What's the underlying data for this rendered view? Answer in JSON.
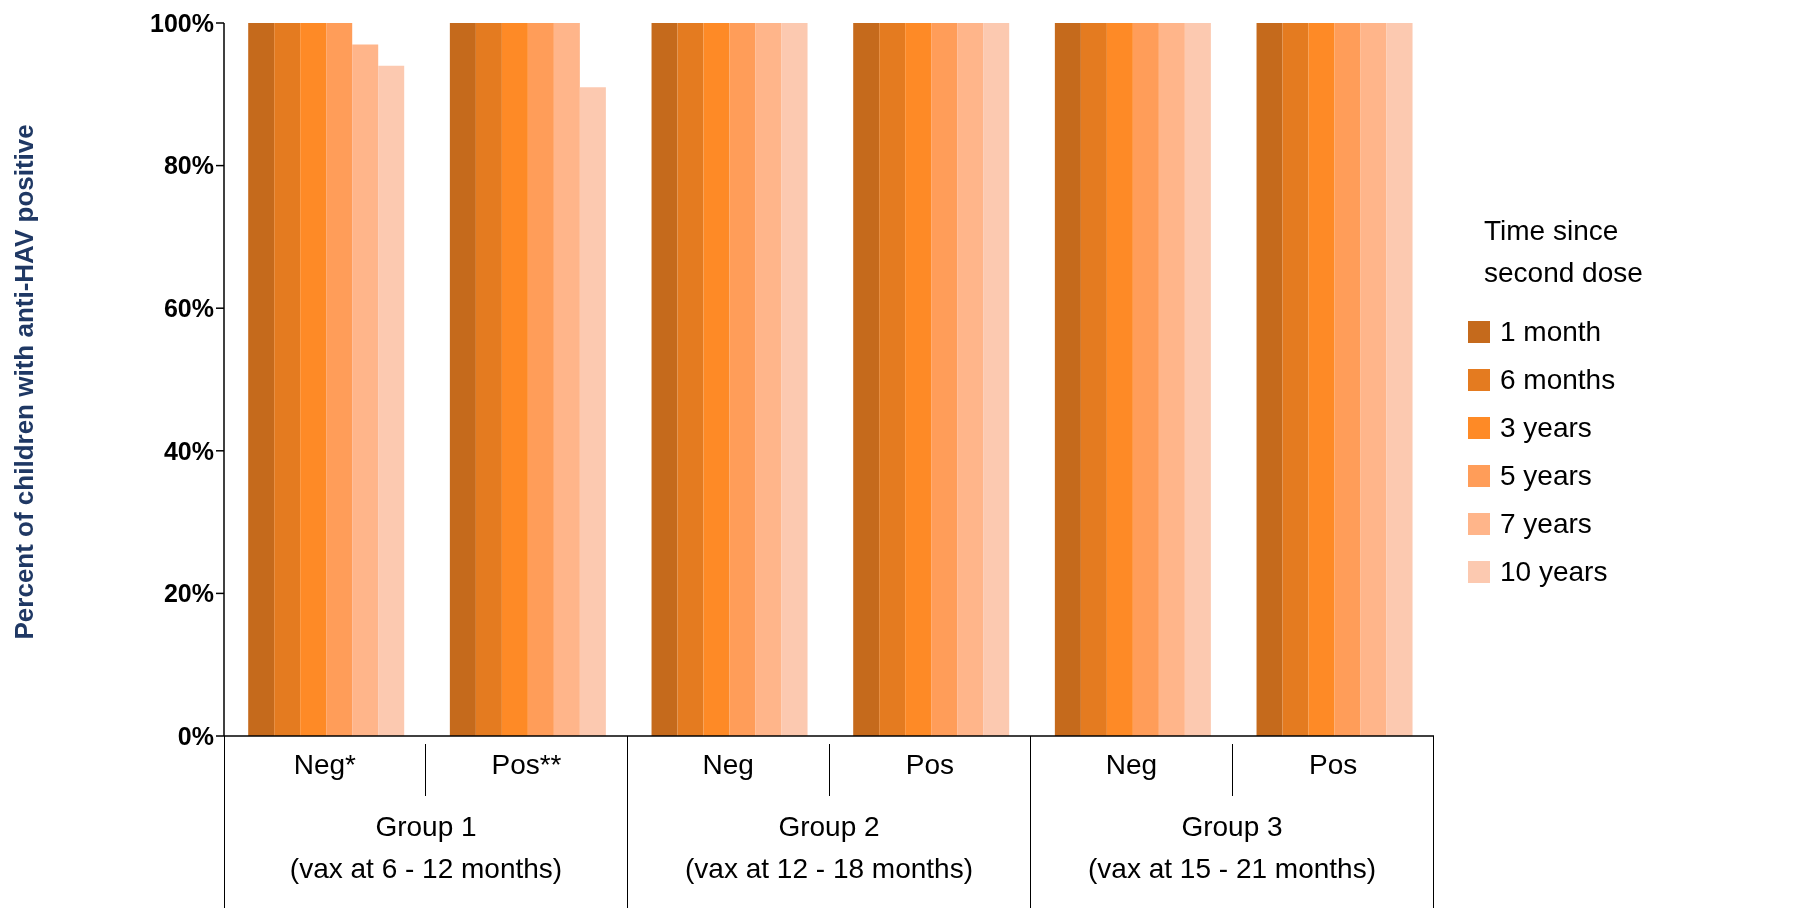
{
  "chart_data": {
    "type": "bar",
    "ylabel": "Percent  of children with anti-HAV positive",
    "legend_title": "Time since second dose",
    "legend": "right",
    "categories": [
      "Neg*",
      "Pos**",
      "Neg",
      "Pos",
      "Neg",
      "Pos"
    ],
    "series": [
      {
        "name": "1 month",
        "color": "#c56a1c",
        "values": [
          100,
          100,
          100,
          100,
          100,
          100
        ]
      },
      {
        "name": "6 months",
        "color": "#e47b20",
        "values": [
          100,
          100,
          100,
          100,
          100,
          100
        ]
      },
      {
        "name": "3 years",
        "color": "#fe8a26",
        "values": [
          100,
          100,
          100,
          100,
          100,
          100
        ]
      },
      {
        "name": "5 years",
        "color": "#ff9d59",
        "values": [
          100,
          100,
          100,
          100,
          100,
          100
        ]
      },
      {
        "name": "7 years",
        "color": "#ffb58a",
        "values": [
          97,
          100,
          100,
          100,
          100,
          100
        ]
      },
      {
        "name": "10 years",
        "color": "#fcc9b0",
        "values": [
          94,
          91,
          100,
          100,
          100,
          100
        ]
      }
    ],
    "ylim": [
      0,
      100
    ],
    "yticks": [
      {
        "value": 0,
        "label": "0%"
      },
      {
        "value": 20,
        "label": "20%"
      },
      {
        "value": 40,
        "label": "40%"
      },
      {
        "value": 60,
        "label": "60%"
      },
      {
        "value": 80,
        "label": "80%"
      },
      {
        "value": 100,
        "label": "100%"
      }
    ],
    "grid": false,
    "annotations": [
      "Group 1\n(vax at 6 - 12 months)",
      "Group 2\n(vax at 12 - 18 months)",
      "Group 3\n(vax at 15 - 21 months)"
    ]
  }
}
